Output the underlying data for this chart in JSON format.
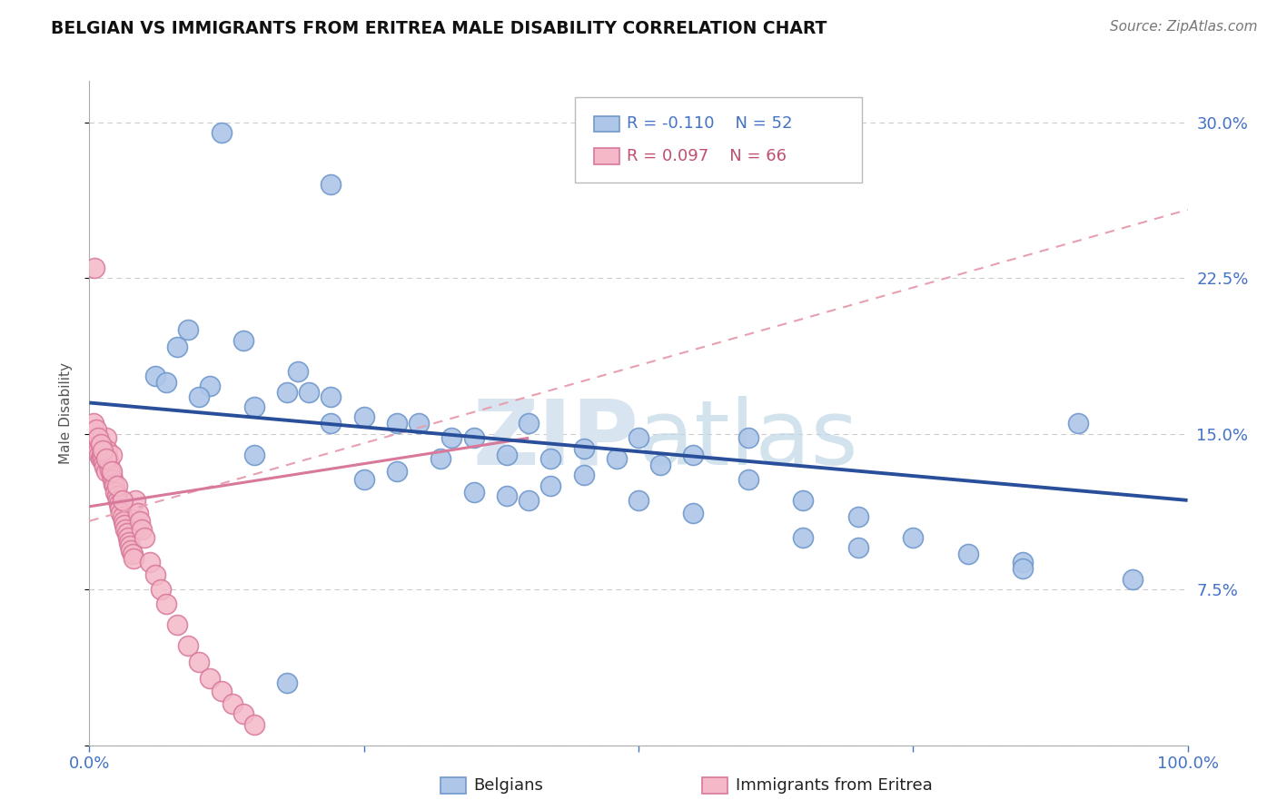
{
  "title": "BELGIAN VS IMMIGRANTS FROM ERITREA MALE DISABILITY CORRELATION CHART",
  "source": "Source: ZipAtlas.com",
  "ylabel": "Male Disability",
  "xlim": [
    0.0,
    1.0
  ],
  "ylim": [
    0.0,
    0.32
  ],
  "yticks": [
    0.0,
    0.075,
    0.15,
    0.225,
    0.3
  ],
  "ytick_labels": [
    "",
    "7.5%",
    "15.0%",
    "22.5%",
    "30.0%"
  ],
  "xticks": [
    0.0,
    0.25,
    0.5,
    0.75,
    1.0
  ],
  "xtick_labels": [
    "0.0%",
    "",
    "",
    "",
    "100.0%"
  ],
  "legend_r_blue": "R = -0.110",
  "legend_n_blue": "N = 52",
  "legend_r_pink": "R = 0.097",
  "legend_n_pink": "N = 66",
  "legend_label_blue": "Belgians",
  "legend_label_pink": "Immigrants from Eritrea",
  "blue_color": "#aec6e8",
  "pink_color": "#f4b8c8",
  "blue_edge_color": "#7099cc",
  "pink_edge_color": "#d8789a",
  "blue_line_color": "#2a4f9a",
  "pink_solid_line_color": "#d8789a",
  "pink_dash_line_color": "#e8a0b0",
  "blue_scatter_x": [
    0.12,
    0.22,
    0.14,
    0.19,
    0.09,
    0.11,
    0.08,
    0.06,
    0.07,
    0.1,
    0.15,
    0.2,
    0.25,
    0.18,
    0.22,
    0.3,
    0.28,
    0.35,
    0.33,
    0.4,
    0.45,
    0.42,
    0.38,
    0.5,
    0.55,
    0.48,
    0.52,
    0.6,
    0.65,
    0.7,
    0.75,
    0.8,
    0.85,
    0.9,
    0.15,
    0.25,
    0.35,
    0.4,
    0.22,
    0.18,
    0.45,
    0.6,
    0.32,
    0.28,
    0.42,
    0.38,
    0.55,
    0.5,
    0.65,
    0.7,
    0.85,
    0.95
  ],
  "blue_scatter_y": [
    0.295,
    0.27,
    0.195,
    0.18,
    0.2,
    0.173,
    0.192,
    0.178,
    0.175,
    0.168,
    0.163,
    0.17,
    0.158,
    0.17,
    0.168,
    0.155,
    0.155,
    0.148,
    0.148,
    0.155,
    0.143,
    0.138,
    0.14,
    0.148,
    0.14,
    0.138,
    0.135,
    0.128,
    0.118,
    0.11,
    0.1,
    0.092,
    0.088,
    0.155,
    0.14,
    0.128,
    0.122,
    0.118,
    0.155,
    0.03,
    0.13,
    0.148,
    0.138,
    0.132,
    0.125,
    0.12,
    0.112,
    0.118,
    0.1,
    0.095,
    0.085,
    0.08
  ],
  "pink_scatter_x": [
    0.005,
    0.005,
    0.006,
    0.007,
    0.008,
    0.009,
    0.01,
    0.01,
    0.011,
    0.012,
    0.013,
    0.014,
    0.015,
    0.015,
    0.016,
    0.017,
    0.018,
    0.019,
    0.02,
    0.02,
    0.021,
    0.022,
    0.023,
    0.024,
    0.025,
    0.026,
    0.027,
    0.028,
    0.029,
    0.03,
    0.031,
    0.032,
    0.033,
    0.034,
    0.035,
    0.036,
    0.037,
    0.038,
    0.039,
    0.04,
    0.042,
    0.044,
    0.046,
    0.048,
    0.05,
    0.055,
    0.06,
    0.065,
    0.07,
    0.08,
    0.09,
    0.1,
    0.11,
    0.12,
    0.13,
    0.14,
    0.15,
    0.004,
    0.006,
    0.008,
    0.01,
    0.012,
    0.015,
    0.02,
    0.025,
    0.03
  ],
  "pink_scatter_y": [
    0.23,
    0.148,
    0.145,
    0.143,
    0.142,
    0.14,
    0.138,
    0.145,
    0.14,
    0.138,
    0.136,
    0.134,
    0.132,
    0.148,
    0.142,
    0.138,
    0.135,
    0.133,
    0.13,
    0.14,
    0.128,
    0.126,
    0.125,
    0.122,
    0.12,
    0.118,
    0.116,
    0.114,
    0.112,
    0.11,
    0.108,
    0.106,
    0.104,
    0.102,
    0.1,
    0.098,
    0.096,
    0.094,
    0.092,
    0.09,
    0.118,
    0.112,
    0.108,
    0.104,
    0.1,
    0.088,
    0.082,
    0.075,
    0.068,
    0.058,
    0.048,
    0.04,
    0.032,
    0.026,
    0.02,
    0.015,
    0.01,
    0.155,
    0.152,
    0.148,
    0.145,
    0.142,
    0.138,
    0.132,
    0.125,
    0.118
  ],
  "blue_trend": [
    0.0,
    1.0,
    0.165,
    0.118
  ],
  "pink_solid_trend": [
    0.0,
    0.4,
    0.115,
    0.148
  ],
  "pink_dash_trend": [
    0.0,
    1.0,
    0.108,
    0.258
  ],
  "watermark_zip": "ZIP",
  "watermark_atlas": "atlas",
  "background_color": "#ffffff",
  "grid_color": "#cccccc",
  "title_color": "#111111",
  "axis_label_color": "#555555",
  "r_value_color_blue": "#4472c4",
  "r_value_color_pink": "#c05070",
  "tick_color": "#4472c4"
}
